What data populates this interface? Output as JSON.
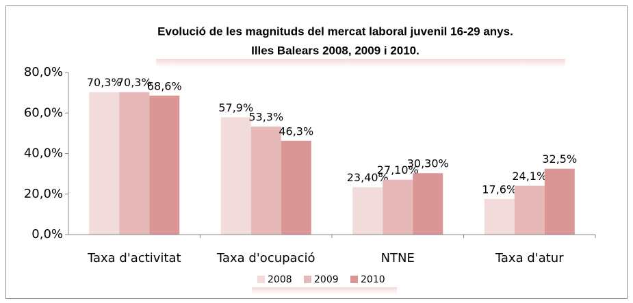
{
  "chart_data": {
    "type": "bar",
    "title": "Evolució de les magnituds del mercat laboral juvenil 16-29 anys.",
    "subtitle": "Illes Balears  2008, 2009 i 2010.",
    "categories": [
      "Taxa d'activitat",
      "Taxa d'ocupació",
      "NTNE",
      "Taxa d'atur"
    ],
    "series": [
      {
        "name": "2008",
        "color": "#f2dcdb",
        "values": [
          70.3,
          57.9,
          23.4,
          17.6
        ],
        "value_labels": [
          "70,3%",
          "57,9%",
          "23,40%",
          "17,6%"
        ]
      },
      {
        "name": "2009",
        "color": "#e6b9b8",
        "values": [
          70.3,
          53.3,
          27.1,
          24.1
        ],
        "value_labels": [
          "70,3%",
          "53,3%",
          "27,10%",
          "24,1%"
        ]
      },
      {
        "name": "2010",
        "color": "#d99694",
        "values": [
          68.6,
          46.3,
          30.3,
          32.5
        ],
        "value_labels": [
          "68,6%",
          "46,3%",
          "30,30%",
          "32,5%"
        ]
      }
    ],
    "ylim": [
      0,
      80
    ],
    "yticks": [
      {
        "value": 0,
        "label": "0,0%"
      },
      {
        "value": 20,
        "label": "20,0%"
      },
      {
        "value": 40,
        "label": "40,0%"
      },
      {
        "value": 60,
        "label": "60,0%"
      },
      {
        "value": 80,
        "label": "80,0%"
      }
    ],
    "legend": "bottom"
  }
}
